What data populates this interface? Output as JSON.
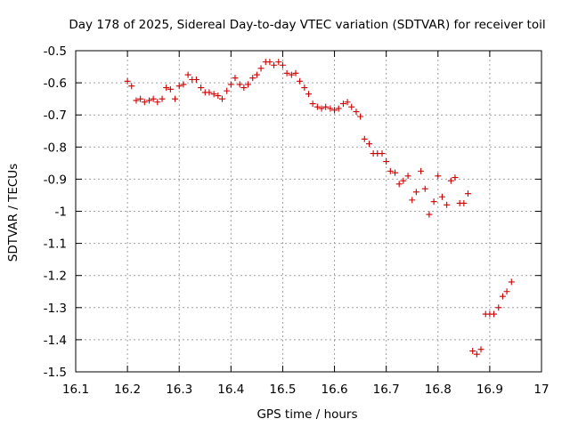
{
  "colors": {
    "point": "#cc0000",
    "axis": "#000000",
    "grid": "#a0a0a0",
    "background": "#ffffff"
  },
  "chart_data": {
    "type": "scatter",
    "title": "Day 178 of 2025, Sidereal Day-to-day VTEC variation (SDTVAR) for receiver toil",
    "xlabel": "GPS time / hours",
    "ylabel": "SDTVAR / TECUs",
    "xlim": [
      16.1,
      17.0
    ],
    "ylim": [
      -1.5,
      -0.5
    ],
    "x_ticks": [
      16.1,
      16.2,
      16.3,
      16.4,
      16.5,
      16.6,
      16.7,
      16.8,
      16.9,
      17.0
    ],
    "x_tick_labels": [
      "16.1",
      "16.2",
      "16.3",
      "16.4",
      "16.5",
      "16.6",
      "16.7",
      "16.8",
      "16.9",
      "17"
    ],
    "y_ticks": [
      -1.5,
      -1.4,
      -1.3,
      -1.2,
      -1.1,
      -1.0,
      -0.9,
      -0.8,
      -0.7,
      -0.6,
      -0.5
    ],
    "y_tick_labels": [
      "-1.5",
      "-1.4",
      "-1.3",
      "-1.2",
      "-1.1",
      "-1",
      "-0.9",
      "-0.8",
      "-0.7",
      "-0.6",
      "-0.5"
    ],
    "grid": true,
    "marker": "+",
    "series": [
      {
        "name": "SDTVAR",
        "x": [
          16.2,
          16.208,
          16.217,
          16.225,
          16.233,
          16.242,
          16.25,
          16.258,
          16.267,
          16.275,
          16.283,
          16.292,
          16.3,
          16.308,
          16.317,
          16.325,
          16.333,
          16.342,
          16.35,
          16.358,
          16.367,
          16.375,
          16.383,
          16.392,
          16.4,
          16.408,
          16.417,
          16.425,
          16.433,
          16.442,
          16.45,
          16.458,
          16.467,
          16.475,
          16.483,
          16.492,
          16.5,
          16.508,
          16.517,
          16.525,
          16.533,
          16.542,
          16.55,
          16.558,
          16.567,
          16.575,
          16.583,
          16.592,
          16.6,
          16.608,
          16.617,
          16.625,
          16.633,
          16.642,
          16.65,
          16.658,
          16.667,
          16.675,
          16.683,
          16.692,
          16.7,
          16.708,
          16.717,
          16.725,
          16.733,
          16.742,
          16.75,
          16.758,
          16.767,
          16.775,
          16.783,
          16.792,
          16.8,
          16.808,
          16.817,
          16.825,
          16.833,
          16.842,
          16.85,
          16.858,
          16.867,
          16.875,
          16.883,
          16.892,
          16.9,
          16.908,
          16.917,
          16.925,
          16.933,
          16.942
        ],
        "y": [
          -0.595,
          -0.61,
          -0.655,
          -0.65,
          -0.66,
          -0.655,
          -0.65,
          -0.66,
          -0.65,
          -0.615,
          -0.62,
          -0.65,
          -0.61,
          -0.605,
          -0.575,
          -0.59,
          -0.59,
          -0.615,
          -0.63,
          -0.63,
          -0.635,
          -0.64,
          -0.65,
          -0.625,
          -0.605,
          -0.585,
          -0.605,
          -0.615,
          -0.605,
          -0.585,
          -0.575,
          -0.555,
          -0.535,
          -0.535,
          -0.545,
          -0.535,
          -0.545,
          -0.57,
          -0.575,
          -0.57,
          -0.595,
          -0.615,
          -0.635,
          -0.665,
          -0.675,
          -0.68,
          -0.675,
          -0.68,
          -0.685,
          -0.68,
          -0.665,
          -0.66,
          -0.675,
          -0.69,
          -0.705,
          -0.775,
          -0.79,
          -0.82,
          -0.82,
          -0.82,
          -0.845,
          -0.875,
          -0.88,
          -0.915,
          -0.905,
          -0.89,
          -0.965,
          -0.94,
          -0.875,
          -0.93,
          -1.01,
          -0.97,
          -0.89,
          -0.955,
          -0.98,
          -0.905,
          -0.895,
          -0.975,
          -0.975,
          -0.945,
          -1.435,
          -1.445,
          -1.43,
          -1.32,
          -1.32,
          -1.32,
          -1.3,
          -1.265,
          -1.25,
          -1.22
        ]
      }
    ]
  }
}
